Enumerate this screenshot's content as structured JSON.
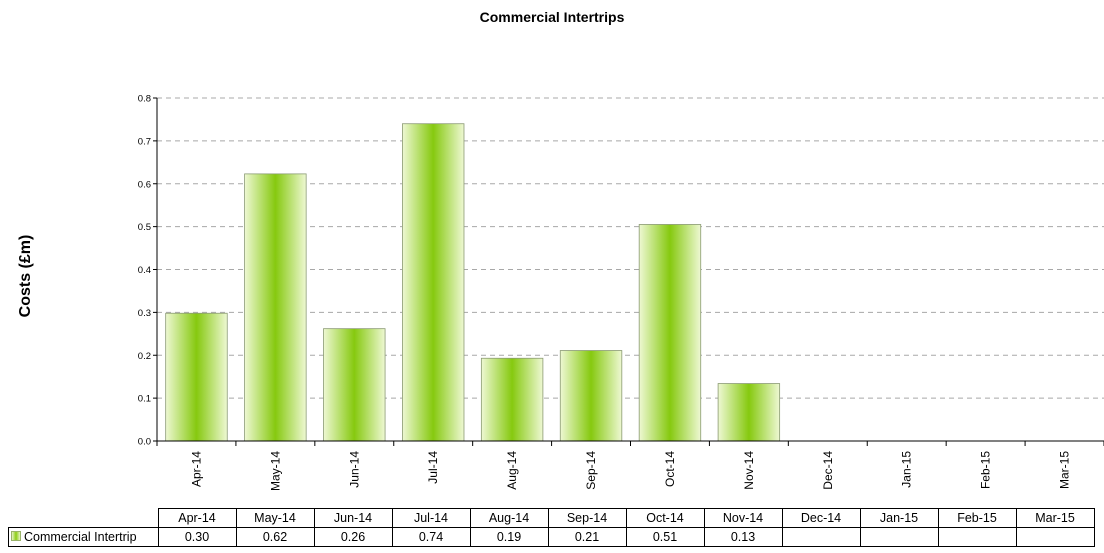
{
  "chart_data": {
    "type": "bar",
    "title": "Commercial Intertrips",
    "xlabel": "",
    "ylabel": "Costs (£m)",
    "ylim": [
      0,
      0.8
    ],
    "yticks": [
      "0.0",
      "0.1",
      "0.2",
      "0.3",
      "0.4",
      "0.5",
      "0.6",
      "0.7",
      "0.8"
    ],
    "categories": [
      "Apr-14",
      "May-14",
      "Jun-14",
      "Jul-14",
      "Aug-14",
      "Sep-14",
      "Oct-14",
      "Nov-14",
      "Dec-14",
      "Jan-15",
      "Feb-15",
      "Mar-15"
    ],
    "series": [
      {
        "name": "Commercial Intertrip",
        "values": [
          0.298,
          0.623,
          0.262,
          0.74,
          0.193,
          0.211,
          0.505,
          0.134,
          null,
          null,
          null,
          null
        ],
        "table_values": [
          "0.30",
          "0.62",
          "0.26",
          "0.74",
          "0.19",
          "0.21",
          "0.51",
          "0.13",
          "",
          "",
          "",
          ""
        ],
        "color": "#8ccd14"
      }
    ],
    "grid": true,
    "legend": "data-table"
  }
}
